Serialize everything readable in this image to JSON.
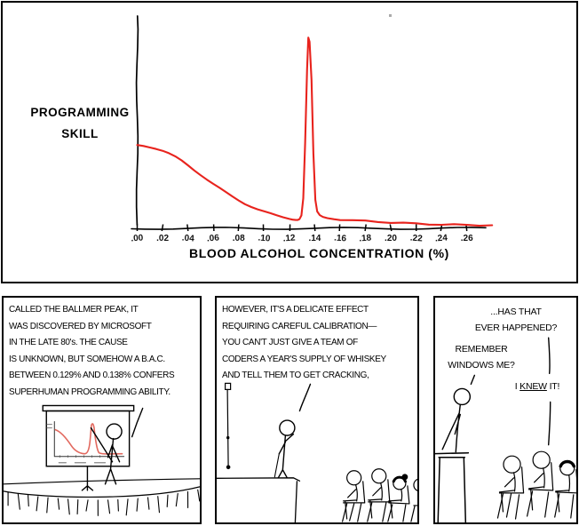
{
  "colors": {
    "ink": "#000000",
    "paper": "#ffffff",
    "curve_red": "#e8231d",
    "mini_curve_red": "#e2695f"
  },
  "chart_data": {
    "type": "line",
    "title": "",
    "xlabel": "BLOOD ALCOHOL CONCENTRATION  (%)",
    "ylabel_lines": [
      "PROGRAMMING",
      "SKILL"
    ],
    "legend": "none",
    "grid": false,
    "xlim": [
      0,
      0.285
    ],
    "ylim": [
      0,
      100
    ],
    "x_tick_labels": [
      ".00",
      ".02",
      ".04",
      ".06",
      ".08",
      ".10",
      ".12",
      ".14",
      ".16",
      ".18",
      ".20",
      ".22",
      ".24",
      ".26"
    ],
    "x_tick_values": [
      0.0,
      0.02,
      0.04,
      0.06,
      0.08,
      0.1,
      0.12,
      0.14,
      0.16,
      0.18,
      0.2,
      0.22,
      0.24,
      0.26
    ],
    "series": [
      {
        "name": "programming skill vs blood alcohol concentration",
        "color": "#e8231d",
        "x": [
          0.0,
          0.005,
          0.01,
          0.015,
          0.02,
          0.025,
          0.03,
          0.035,
          0.04,
          0.045,
          0.05,
          0.055,
          0.06,
          0.065,
          0.07,
          0.075,
          0.08,
          0.085,
          0.09,
          0.095,
          0.1,
          0.105,
          0.11,
          0.115,
          0.12,
          0.1225,
          0.125,
          0.1265,
          0.128,
          0.1295,
          0.131,
          0.1325,
          0.134,
          0.135,
          0.136,
          0.1375,
          0.139,
          0.1405,
          0.142,
          0.144,
          0.1465,
          0.15,
          0.155,
          0.16,
          0.17,
          0.18,
          0.19,
          0.2,
          0.21,
          0.22,
          0.23,
          0.24,
          0.25,
          0.26,
          0.27,
          0.28
        ],
        "y": [
          39,
          38.8,
          38.3,
          37.6,
          36.6,
          35.2,
          33.6,
          31.7,
          29.6,
          27.4,
          25.2,
          23.0,
          20.8,
          18.7,
          16.7,
          14.8,
          13.1,
          11.5,
          10.1,
          8.8,
          7.7,
          6.7,
          5.8,
          5.1,
          4.5,
          4.2,
          4.0,
          4.0,
          4.3,
          6.0,
          14,
          40,
          75,
          90,
          88,
          70,
          35,
          13,
          7.5,
          5.8,
          5.0,
          4.6,
          4.3,
          4.0,
          3.6,
          3.2,
          2.9,
          2.6,
          2.3,
          2.0,
          1.8,
          1.6,
          1.5,
          1.4,
          1.3,
          1.2
        ]
      }
    ],
    "peak": {
      "x": 0.135,
      "y": 90
    }
  },
  "panels": [
    {
      "caption_lines": [
        "CALLED THE BALLMER PEAK, IT",
        "WAS DISCOVERED BY MICROSOFT",
        "IN THE LATE 80's.  THE CAUSE",
        "IS UNKNOWN, BUT SOMEHOW A B.A.C.",
        "BETWEEN 0.129% AND 0.138% CONFERS",
        "SUPERHUMAN PROGRAMMING ABILITY."
      ]
    },
    {
      "caption_lines": [
        "HOWEVER, IT'S A DELICATE EFFECT",
        "REQUIRING CAREFUL CALIBRATION—",
        "YOU CAN'T JUST GIVE A TEAM OF",
        "CODERS A YEAR'S SUPPLY OF WHISKEY",
        "AND TELL THEM TO GET CRACKING,"
      ]
    },
    {
      "audience_question_lines": [
        "...HAS THAT",
        "EVER HAPPENED?"
      ],
      "presenter_reply_lines": [
        "REMEMBER",
        "WINDOWS ME?"
      ],
      "audience_exclaim": {
        "prefix": "I ",
        "underlined": "KNEW",
        "suffix": " IT!"
      }
    }
  ]
}
